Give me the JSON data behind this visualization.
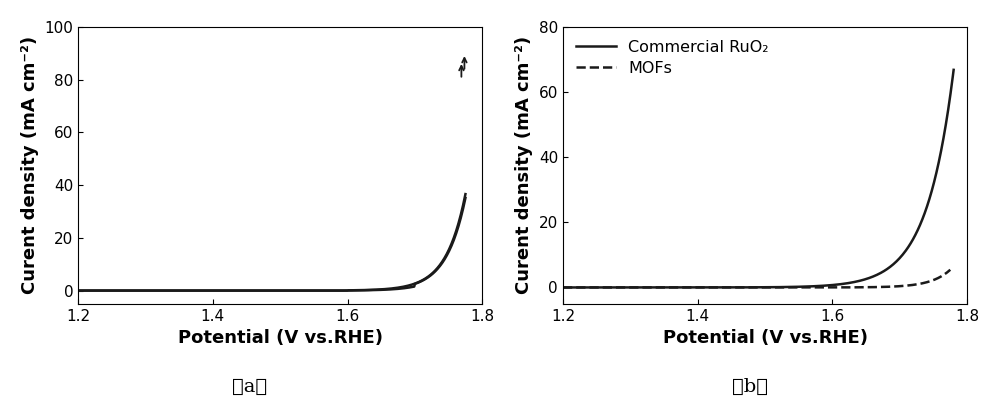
{
  "panel_a": {
    "xlabel": "Potential (V vs.RHE)",
    "ylabel": "Curent density (mA cm⁻²)",
    "xlim": [
      1.2,
      1.8
    ],
    "ylim": [
      -5,
      100
    ],
    "yticks": [
      0,
      20,
      40,
      60,
      80,
      100
    ],
    "xticks": [
      1.2,
      1.4,
      1.6,
      1.8
    ],
    "label": "（a）"
  },
  "panel_b": {
    "xlabel": "Potential (V vs.RHE)",
    "ylabel": "Curent density (mA cm⁻²)",
    "xlim": [
      1.2,
      1.8
    ],
    "ylim": [
      -5,
      80
    ],
    "yticks": [
      0,
      20,
      40,
      60,
      80
    ],
    "xticks": [
      1.2,
      1.4,
      1.6,
      1.8
    ],
    "label": "（b）",
    "legend": [
      "Commercial RuO₂",
      "MOFs"
    ]
  },
  "line_color": "#1a1a1a",
  "background_color": "#ffffff",
  "label_fontsize": 13,
  "tick_fontsize": 11,
  "caption_fontsize": 14
}
